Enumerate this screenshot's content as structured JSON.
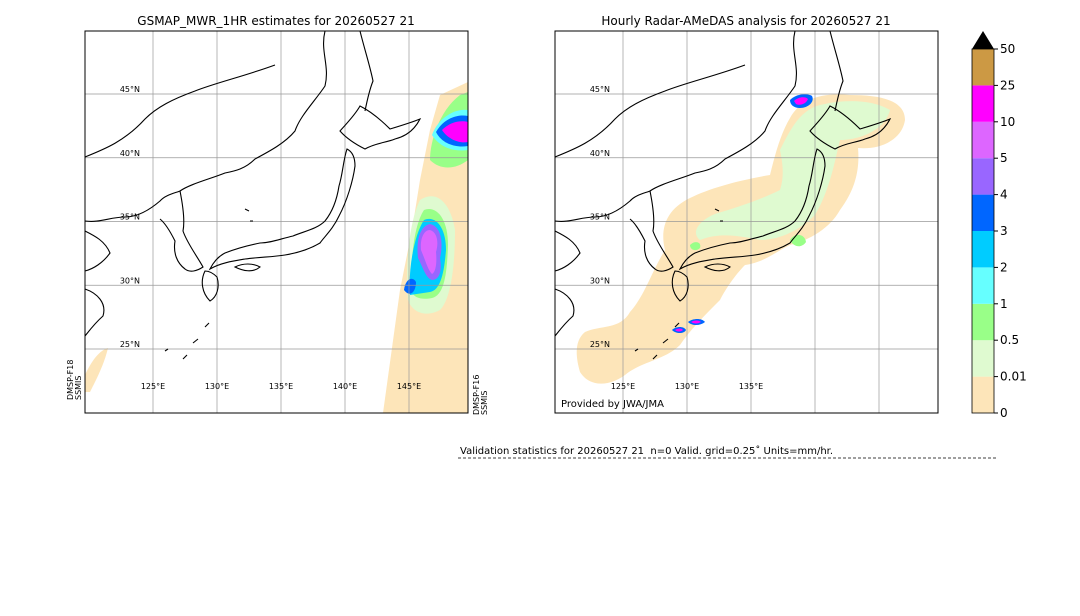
{
  "panels": [
    {
      "title": "GSMAP_MWR_1HR estimates for 20260527 21",
      "lat_labels": [
        "45°N",
        "40°N",
        "35°N",
        "30°N",
        "25°N"
      ],
      "lon_labels": [
        "125°E",
        "130°E",
        "135°E",
        "140°E",
        "145°E"
      ],
      "sensor_left": [
        "DMSP-F18",
        "SSMIS"
      ],
      "sensor_right": [
        "DMSP-F16",
        "SSMIS"
      ]
    },
    {
      "title": "Hourly Radar-AMeDAS analysis for 20260527 21",
      "lat_labels": [
        "45°N",
        "40°N",
        "35°N",
        "30°N",
        "25°N"
      ],
      "lon_labels": [
        "125°E",
        "130°E",
        "135°E"
      ],
      "credit": "Provided by JWA/JMA"
    }
  ],
  "colorbar": {
    "levels": [
      0,
      0.01,
      0.5,
      1,
      2,
      3,
      4,
      5,
      10,
      25,
      50
    ],
    "colors": [
      "#fde5b9",
      "#dffad0",
      "#99ff88",
      "#66ffff",
      "#00ccff",
      "#0066ff",
      "#9966ff",
      "#dd66ff",
      "#ff00ff",
      "#cc9944"
    ],
    "extend_color": "#000000"
  },
  "validation": "Validation statistics for 20260527 21  n=0 Valid. grid=0.25˚ Units=mm/hr."
}
